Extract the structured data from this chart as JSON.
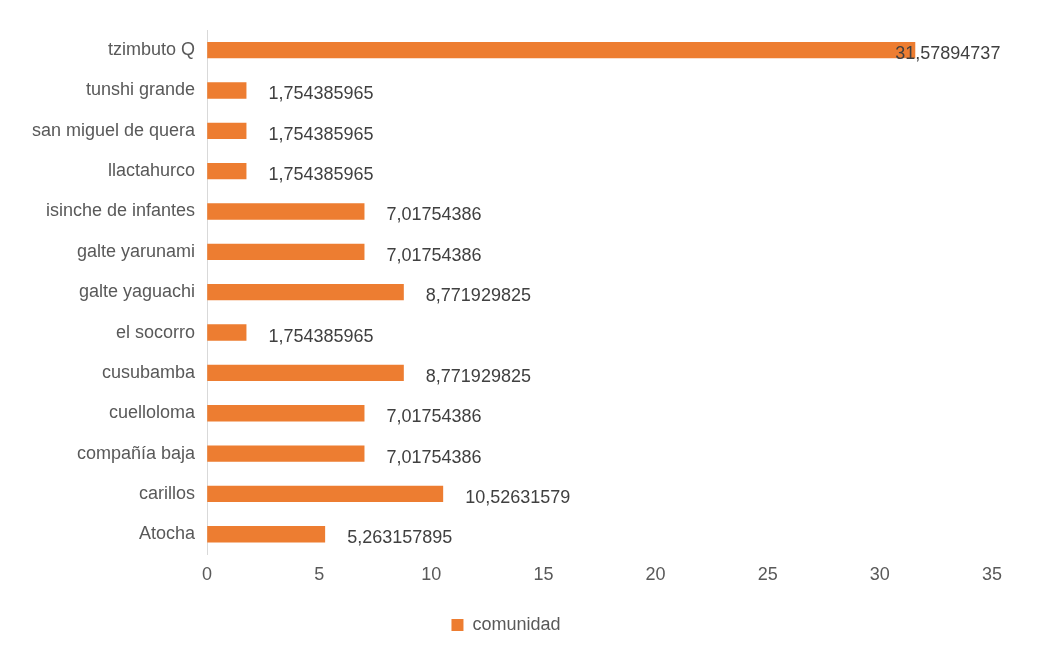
{
  "chart_data": {
    "type": "bar",
    "orientation": "horizontal",
    "categories": [
      "tzimbuto Q",
      "tunshi grande",
      "san miguel de quera",
      "llactahurco",
      "isinche de infantes",
      "galte yarunami",
      "galte yaguachi",
      "el socorro",
      "cusubamba",
      "cuelloloma",
      "compañía baja",
      "carillos",
      "Atocha"
    ],
    "series": [
      {
        "name": "comunidad",
        "color": "#ed7d31",
        "values": [
          31.57894737,
          1.754385965,
          1.754385965,
          1.754385965,
          7.01754386,
          7.01754386,
          8.771929825,
          1.754385965,
          8.771929825,
          7.01754386,
          7.01754386,
          10.52631579,
          5.263157895
        ],
        "value_labels": [
          "31,57894737",
          "1,754385965",
          "1,754385965",
          "1,754385965",
          "7,01754386",
          "7,01754386",
          "8,771929825",
          "1,754385965",
          "8,771929825",
          "7,01754386",
          "7,01754386",
          "10,52631579",
          "5,263157895"
        ]
      }
    ],
    "xlim": [
      0,
      35
    ],
    "xticks": [
      0,
      5,
      10,
      15,
      20,
      25,
      30,
      35
    ],
    "grid": false,
    "legend": "bottom"
  }
}
